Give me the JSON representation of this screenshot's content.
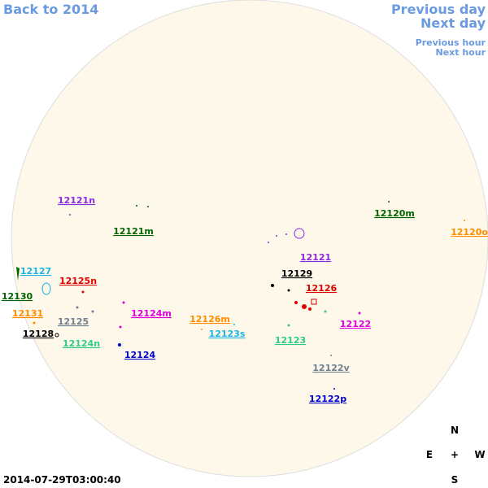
{
  "nav": {
    "back": "Back to 2014",
    "previous_day": "Previous day",
    "next_day": "Next day",
    "previous_hour": "Previous hour",
    "next_hour": "Next hour"
  },
  "timestamp": "2014-07-29T03:00:40",
  "compass": {
    "north": "N",
    "east": "E",
    "center": "+",
    "west": "W",
    "south": "S"
  },
  "labels": [
    {
      "text": "12121n",
      "color": "#8a2be2"
    },
    {
      "text": "12121m",
      "color": "#006400"
    },
    {
      "text": "12120m",
      "color": "#006400"
    },
    {
      "text": "12120o",
      "color": "#ff8c00"
    },
    {
      "text": "12127",
      "color": "#1eb4e6"
    },
    {
      "text": "12125n",
      "color": "#dd0000"
    },
    {
      "text": "12130",
      "color": "#006400"
    },
    {
      "text": "12131",
      "color": "#ff8c00"
    },
    {
      "text": "12124m",
      "color": "#dd00dd"
    },
    {
      "text": "12125",
      "color": "#708090"
    },
    {
      "text": "12126m",
      "color": "#ff8c00"
    },
    {
      "text": "12128",
      "color": "#000000"
    },
    {
      "text": "12123s",
      "color": "#1eb4e6"
    },
    {
      "text": "12124n",
      "color": "#2ecc88"
    },
    {
      "text": "12124",
      "color": "#0000cc"
    },
    {
      "text": "12121",
      "color": "#8a2be2"
    },
    {
      "text": "12129",
      "color": "#000000"
    },
    {
      "text": "12126",
      "color": "#dd0000"
    },
    {
      "text": "12122",
      "color": "#dd00dd"
    },
    {
      "text": "12123",
      "color": "#2ecc88"
    },
    {
      "text": "12122v",
      "color": "#708090"
    },
    {
      "text": "12122p",
      "color": "#0000cc"
    }
  ]
}
